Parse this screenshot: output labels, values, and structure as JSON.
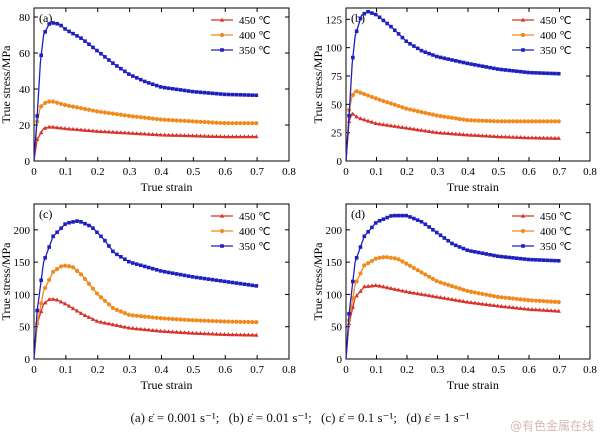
{
  "colors": {
    "c450": "#d8322a",
    "c400": "#f08a1c",
    "c350": "#1f1fbf",
    "axis": "#000000"
  },
  "legend_labels": [
    "450 ℃",
    "400 ℃",
    "350 ℃"
  ],
  "chart_data": [
    {
      "type": "line",
      "panel_label": "(a)",
      "xlabel": "True strain",
      "ylabel": "True stress/MPa",
      "xlim": [
        0,
        0.8
      ],
      "ylim": [
        0,
        85
      ],
      "xticks": [
        0,
        0.1,
        0.2,
        0.3,
        0.4,
        0.5,
        0.6,
        0.7,
        0.8
      ],
      "yticks": [
        0,
        20,
        40,
        60,
        80
      ],
      "legend": "top-right",
      "series": [
        {
          "name": "450 ℃",
          "marker": "triangle",
          "points": [
            [
              0,
              0
            ],
            [
              0.01,
              12
            ],
            [
              0.03,
              18
            ],
            [
              0.05,
              19
            ],
            [
              0.1,
              18
            ],
            [
              0.2,
              16.5
            ],
            [
              0.3,
              15.5
            ],
            [
              0.4,
              14.5
            ],
            [
              0.5,
              14
            ],
            [
              0.6,
              13.5
            ],
            [
              0.7,
              13.5
            ]
          ]
        },
        {
          "name": "400 ℃",
          "marker": "circle",
          "points": [
            [
              0,
              0
            ],
            [
              0.01,
              22
            ],
            [
              0.02,
              30
            ],
            [
              0.04,
              33
            ],
            [
              0.06,
              33
            ],
            [
              0.1,
              31
            ],
            [
              0.2,
              27.5
            ],
            [
              0.3,
              25
            ],
            [
              0.4,
              23
            ],
            [
              0.5,
              22
            ],
            [
              0.6,
              21
            ],
            [
              0.7,
              21
            ]
          ]
        },
        {
          "name": "350 ℃",
          "marker": "square",
          "points": [
            [
              0,
              0
            ],
            [
              0.01,
              25
            ],
            [
              0.02,
              55
            ],
            [
              0.03,
              70
            ],
            [
              0.05,
              77
            ],
            [
              0.08,
              76
            ],
            [
              0.1,
              73
            ],
            [
              0.15,
              68
            ],
            [
              0.2,
              61
            ],
            [
              0.25,
              54
            ],
            [
              0.3,
              48
            ],
            [
              0.35,
              44
            ],
            [
              0.4,
              41
            ],
            [
              0.5,
              38.5
            ],
            [
              0.6,
              37
            ],
            [
              0.7,
              36.5
            ]
          ]
        }
      ]
    },
    {
      "type": "line",
      "panel_label": "(b)",
      "xlabel": "True strain",
      "ylabel": "True stress/MPa",
      "xlim": [
        0,
        0.8
      ],
      "ylim": [
        0,
        135
      ],
      "xticks": [
        0,
        0.1,
        0.2,
        0.3,
        0.4,
        0.5,
        0.6,
        0.7,
        0.8
      ],
      "yticks": [
        0,
        25,
        50,
        75,
        100,
        125
      ],
      "legend": "top-right",
      "series": [
        {
          "name": "450 ℃",
          "marker": "triangle",
          "points": [
            [
              0,
              0
            ],
            [
              0.01,
              35
            ],
            [
              0.02,
              42
            ],
            [
              0.04,
              38
            ],
            [
              0.1,
              33
            ],
            [
              0.2,
              29
            ],
            [
              0.3,
              25
            ],
            [
              0.4,
              23
            ],
            [
              0.5,
              21.5
            ],
            [
              0.6,
              20.5
            ],
            [
              0.7,
              20
            ]
          ]
        },
        {
          "name": "400 ℃",
          "marker": "circle",
          "points": [
            [
              0,
              0
            ],
            [
              0.01,
              45
            ],
            [
              0.02,
              57
            ],
            [
              0.03,
              62
            ],
            [
              0.05,
              60
            ],
            [
              0.1,
              55
            ],
            [
              0.2,
              46
            ],
            [
              0.3,
              40
            ],
            [
              0.4,
              36
            ],
            [
              0.5,
              35
            ],
            [
              0.6,
              35
            ],
            [
              0.7,
              35
            ]
          ]
        },
        {
          "name": "350 ℃",
          "marker": "square",
          "points": [
            [
              0,
              0
            ],
            [
              0.01,
              40
            ],
            [
              0.02,
              85
            ],
            [
              0.03,
              110
            ],
            [
              0.05,
              128
            ],
            [
              0.07,
              132
            ],
            [
              0.1,
              129
            ],
            [
              0.15,
              118
            ],
            [
              0.2,
              105
            ],
            [
              0.25,
              97
            ],
            [
              0.3,
              92
            ],
            [
              0.4,
              86
            ],
            [
              0.5,
              81
            ],
            [
              0.6,
              78
            ],
            [
              0.7,
              77
            ]
          ]
        }
      ]
    },
    {
      "type": "line",
      "panel_label": "(c)",
      "xlabel": "True strain",
      "ylabel": "True stress/MPa",
      "xlim": [
        0,
        0.8
      ],
      "ylim": [
        0,
        240
      ],
      "xticks": [
        0,
        0.1,
        0.2,
        0.3,
        0.4,
        0.5,
        0.6,
        0.7,
        0.8
      ],
      "yticks": [
        0,
        50,
        100,
        150,
        200
      ],
      "legend": "top-right",
      "series": [
        {
          "name": "450 ℃",
          "marker": "triangle",
          "points": [
            [
              0,
              0
            ],
            [
              0.01,
              55
            ],
            [
              0.03,
              85
            ],
            [
              0.05,
              93
            ],
            [
              0.07,
              92
            ],
            [
              0.1,
              85
            ],
            [
              0.15,
              70
            ],
            [
              0.2,
              58
            ],
            [
              0.3,
              48
            ],
            [
              0.4,
              43
            ],
            [
              0.5,
              40
            ],
            [
              0.6,
              38
            ],
            [
              0.7,
              37
            ]
          ]
        },
        {
          "name": "400 ℃",
          "marker": "circle",
          "points": [
            [
              0,
              0
            ],
            [
              0.01,
              55
            ],
            [
              0.03,
              105
            ],
            [
              0.06,
              135
            ],
            [
              0.09,
              145
            ],
            [
              0.12,
              143
            ],
            [
              0.15,
              130
            ],
            [
              0.2,
              100
            ],
            [
              0.25,
              78
            ],
            [
              0.3,
              68
            ],
            [
              0.4,
              63
            ],
            [
              0.5,
              60
            ],
            [
              0.6,
              58
            ],
            [
              0.7,
              57
            ]
          ]
        },
        {
          "name": "350 ℃",
          "marker": "square",
          "points": [
            [
              0,
              0
            ],
            [
              0.01,
              75
            ],
            [
              0.03,
              150
            ],
            [
              0.06,
              190
            ],
            [
              0.1,
              210
            ],
            [
              0.14,
              214
            ],
            [
              0.18,
              205
            ],
            [
              0.22,
              185
            ],
            [
              0.25,
              165
            ],
            [
              0.3,
              150
            ],
            [
              0.4,
              136
            ],
            [
              0.5,
              127
            ],
            [
              0.6,
              120
            ],
            [
              0.7,
              113
            ]
          ]
        }
      ]
    },
    {
      "type": "line",
      "panel_label": "(d)",
      "xlabel": "True strain",
      "ylabel": "True stress/MPa",
      "xlim": [
        0,
        0.8
      ],
      "ylim": [
        0,
        240
      ],
      "xticks": [
        0,
        0.1,
        0.2,
        0.3,
        0.4,
        0.5,
        0.6,
        0.7,
        0.8
      ],
      "yticks": [
        0,
        50,
        100,
        150,
        200
      ],
      "legend": "top-right",
      "series": [
        {
          "name": "450 ℃",
          "marker": "triangle",
          "points": [
            [
              0,
              0
            ],
            [
              0.01,
              55
            ],
            [
              0.03,
              95
            ],
            [
              0.06,
              112
            ],
            [
              0.1,
              114
            ],
            [
              0.15,
              109
            ],
            [
              0.2,
              104
            ],
            [
              0.3,
              96
            ],
            [
              0.4,
              88
            ],
            [
              0.5,
              82
            ],
            [
              0.6,
              77
            ],
            [
              0.7,
              74
            ]
          ]
        },
        {
          "name": "400 ℃",
          "marker": "circle",
          "points": [
            [
              0,
              0
            ],
            [
              0.01,
              60
            ],
            [
              0.03,
              115
            ],
            [
              0.06,
              145
            ],
            [
              0.1,
              156
            ],
            [
              0.13,
              158
            ],
            [
              0.17,
              155
            ],
            [
              0.2,
              147
            ],
            [
              0.3,
              120
            ],
            [
              0.4,
              105
            ],
            [
              0.5,
              96
            ],
            [
              0.6,
              91
            ],
            [
              0.7,
              88
            ]
          ]
        },
        {
          "name": "350 ℃",
          "marker": "square",
          "points": [
            [
              0,
              0
            ],
            [
              0.01,
              70
            ],
            [
              0.03,
              150
            ],
            [
              0.06,
              190
            ],
            [
              0.1,
              212
            ],
            [
              0.15,
              222
            ],
            [
              0.2,
              222
            ],
            [
              0.25,
              212
            ],
            [
              0.3,
              195
            ],
            [
              0.35,
              178
            ],
            [
              0.4,
              168
            ],
            [
              0.5,
              159
            ],
            [
              0.6,
              154
            ],
            [
              0.7,
              152
            ]
          ]
        }
      ]
    }
  ],
  "caption": {
    "a": "(a)  ε̇ = 0.001 s⁻¹;",
    "b": "(b)  ε̇ = 0.01 s⁻¹;",
    "c": "(c)  ε̇ = 0.1 s⁻¹;",
    "d": "(d)  ε̇ = 1 s⁻¹"
  },
  "watermark": "@有色金属在线"
}
